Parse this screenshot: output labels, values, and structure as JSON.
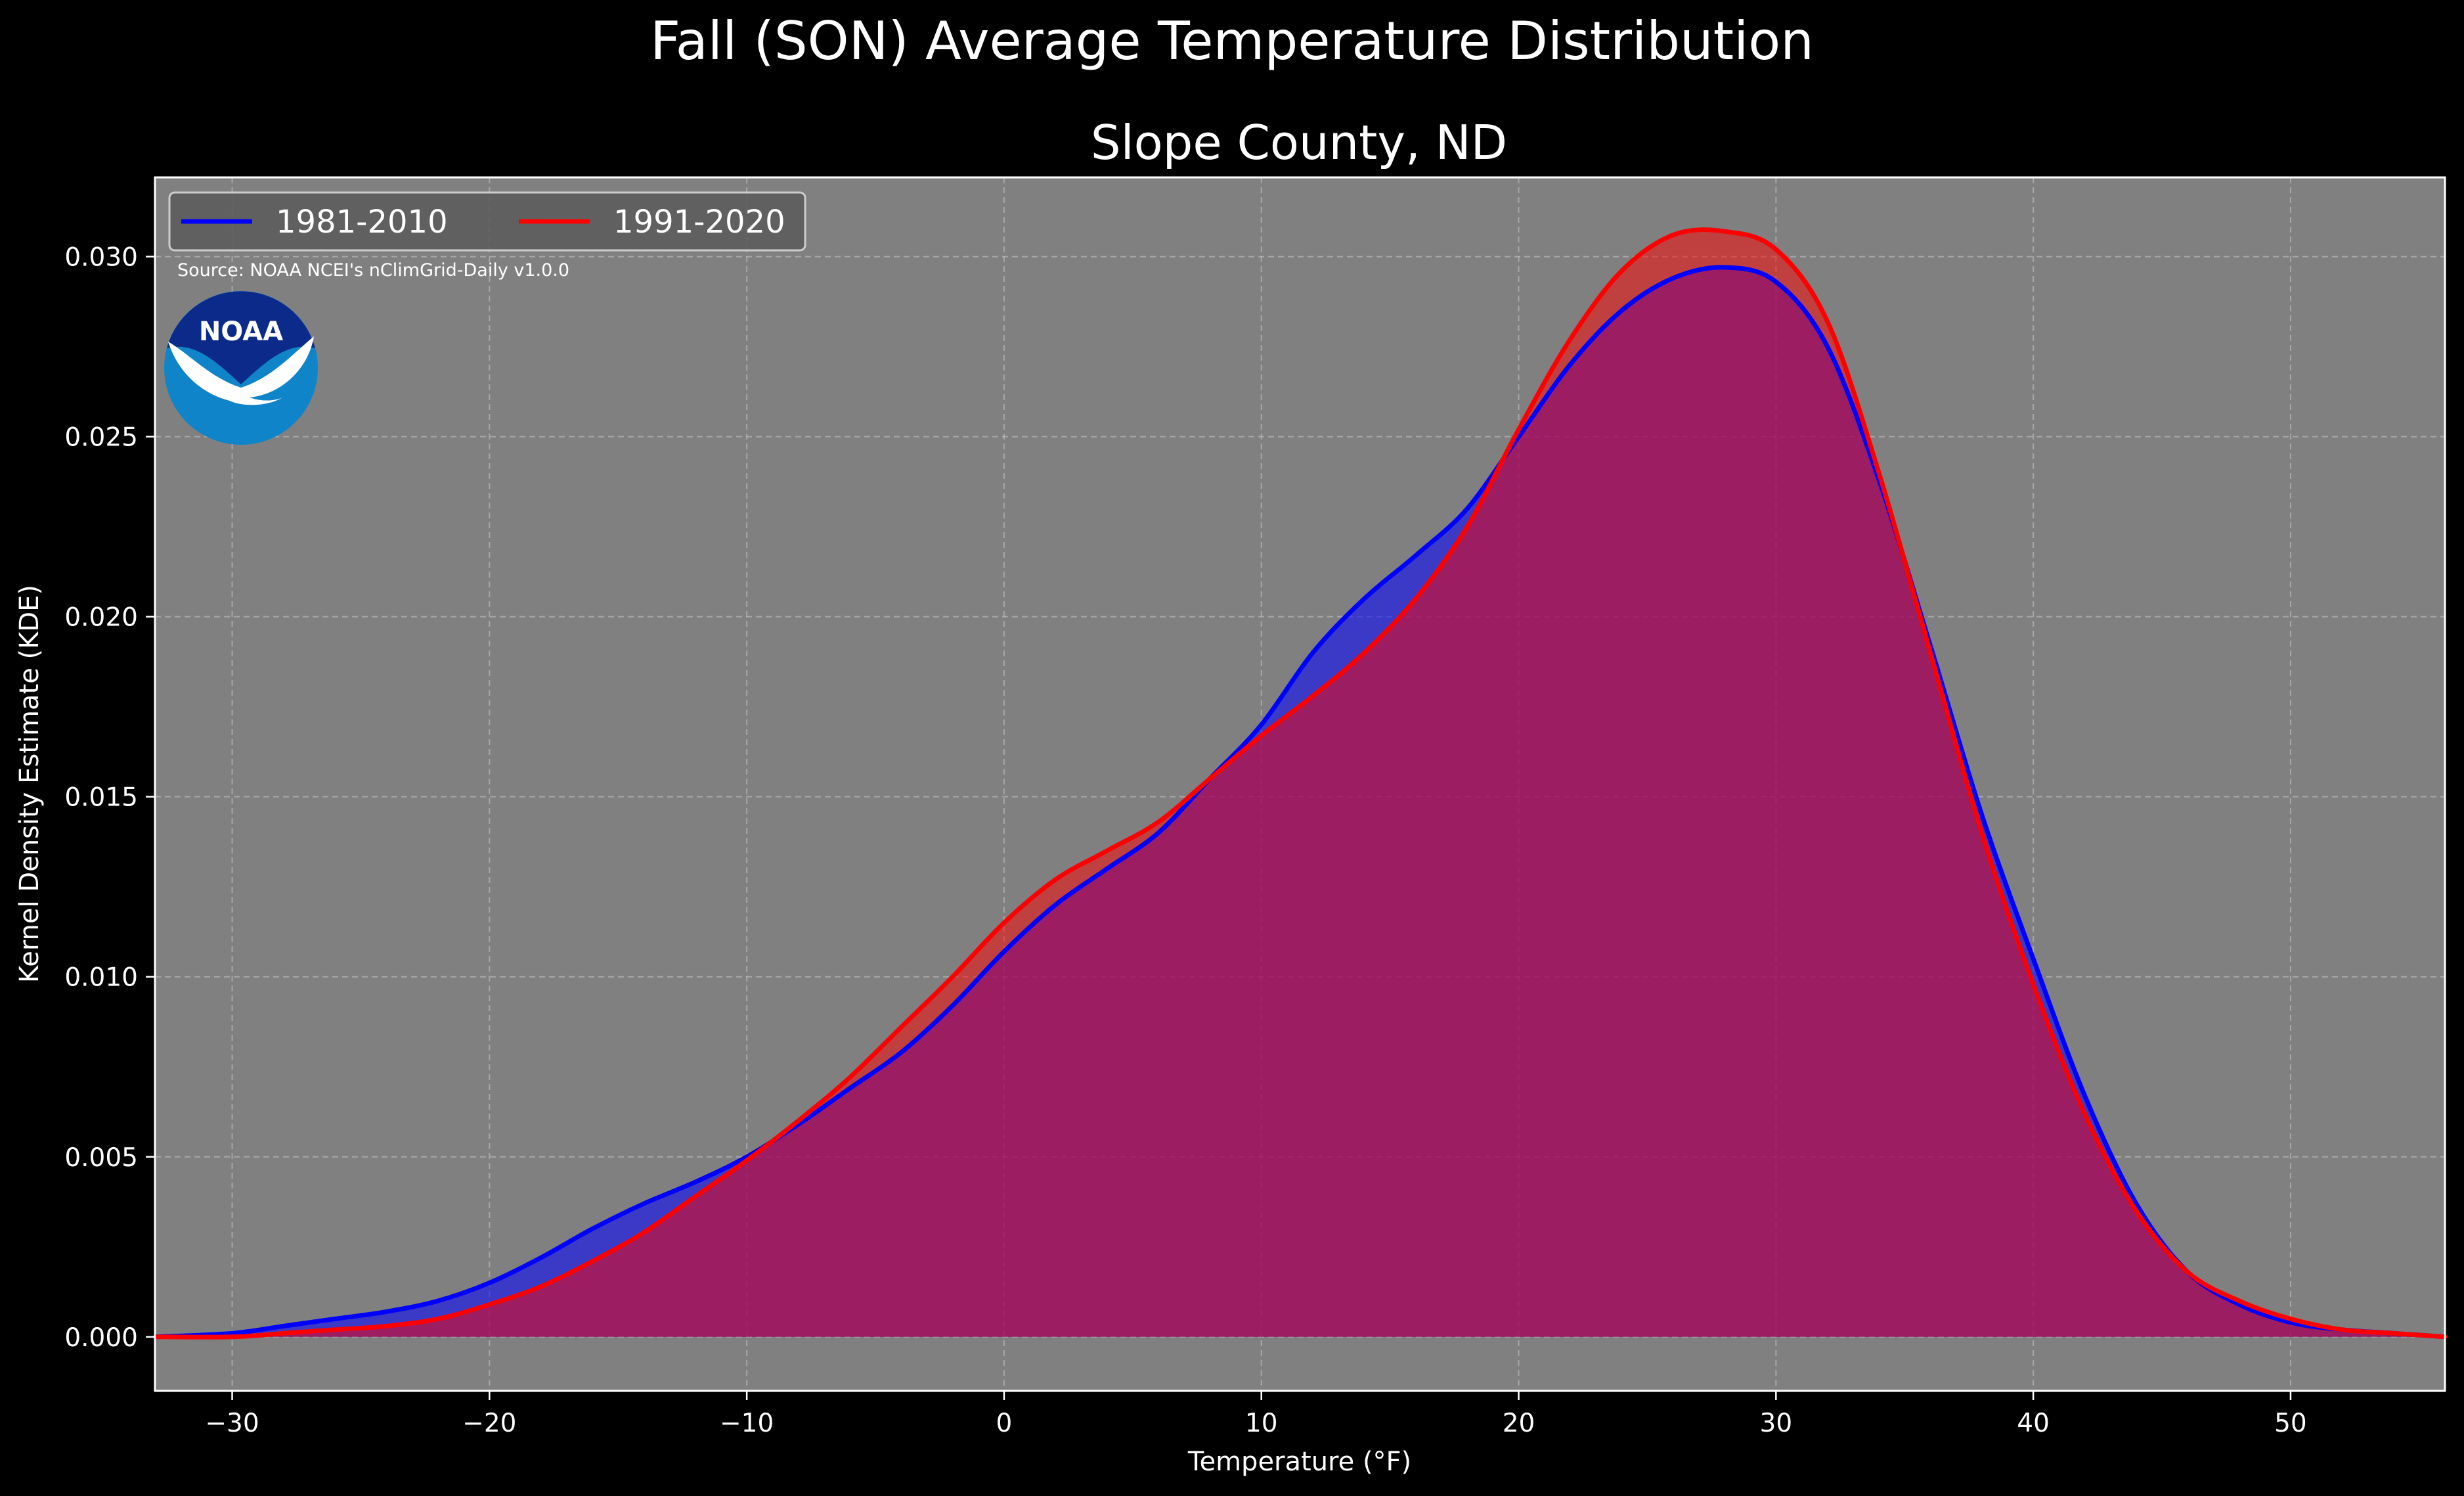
{
  "colors": {
    "figure_background": "#000000",
    "plot_background": "#808080",
    "series_1": "#0000ff",
    "series_2": "#ff0000",
    "overlap_fill": "#9c1f5e",
    "text": "#ffffff",
    "noaa_dark": "#0b2a8a",
    "noaa_light": "#0f84c8"
  },
  "logo": {
    "text": "NOAA",
    "icon": "noaa-seagull-icon"
  },
  "chart_data": {
    "type": "area",
    "suptitle": "Fall (SON) Average Temperature Distribution",
    "title": "Slope County, ND",
    "xlabel": "Temperature (°F)",
    "ylabel": "Kernel Density Estimate (KDE)",
    "source": "Source: NOAA NCEI's nClimGrid-Daily v1.0.0",
    "xlim": [
      -33,
      56
    ],
    "ylim": [
      -0.0015,
      0.0322
    ],
    "grid": true,
    "legend_placement": "upper-left",
    "xticks": [
      -30,
      -20,
      -10,
      0,
      10,
      20,
      30,
      40,
      50
    ],
    "xtick_labels": [
      "−30",
      "−20",
      "−10",
      "0",
      "10",
      "20",
      "30",
      "40",
      "50"
    ],
    "yticks": [
      0.0,
      0.005,
      0.01,
      0.015,
      0.02,
      0.025,
      0.03
    ],
    "ytick_labels": [
      "0.000",
      "0.005",
      "0.010",
      "0.015",
      "0.020",
      "0.025",
      "0.030"
    ],
    "x": [
      -33,
      -30,
      -28,
      -26,
      -24,
      -22,
      -20,
      -18,
      -16,
      -14,
      -12,
      -10,
      -8,
      -6,
      -4,
      -2,
      0,
      2,
      4,
      6,
      8,
      10,
      12,
      14,
      16,
      18,
      20,
      22,
      24,
      26,
      28,
      30,
      32,
      34,
      36,
      38,
      40,
      42,
      44,
      46,
      48,
      50,
      52,
      54,
      56
    ],
    "series": [
      {
        "name": "1981-2010",
        "color": "#0000ff",
        "values": [
          0.0,
          0.0001,
          0.0003,
          0.0005,
          0.0007,
          0.001,
          0.0015,
          0.0022,
          0.003,
          0.0037,
          0.0043,
          0.005,
          0.0059,
          0.0069,
          0.0079,
          0.0092,
          0.0107,
          0.012,
          0.013,
          0.014,
          0.0155,
          0.017,
          0.019,
          0.0205,
          0.0217,
          0.023,
          0.025,
          0.027,
          0.0285,
          0.0294,
          0.0297,
          0.0293,
          0.0275,
          0.0238,
          0.0192,
          0.0145,
          0.0105,
          0.0067,
          0.0037,
          0.0018,
          0.0009,
          0.0004,
          0.0002,
          0.0001,
          0.0
        ]
      },
      {
        "name": "1991-2020",
        "color": "#ff0000",
        "values": [
          0.0,
          0.0,
          0.0001,
          0.0002,
          0.0003,
          0.0005,
          0.0009,
          0.0014,
          0.0021,
          0.0029,
          0.0039,
          0.0049,
          0.006,
          0.0072,
          0.0086,
          0.01,
          0.0115,
          0.0127,
          0.0135,
          0.0143,
          0.0155,
          0.0167,
          0.0178,
          0.019,
          0.0205,
          0.0225,
          0.0252,
          0.0277,
          0.0296,
          0.0306,
          0.0307,
          0.0302,
          0.0282,
          0.024,
          0.019,
          0.014,
          0.0098,
          0.0062,
          0.0035,
          0.0018,
          0.001,
          0.0005,
          0.0002,
          0.0001,
          0.0
        ]
      }
    ]
  }
}
